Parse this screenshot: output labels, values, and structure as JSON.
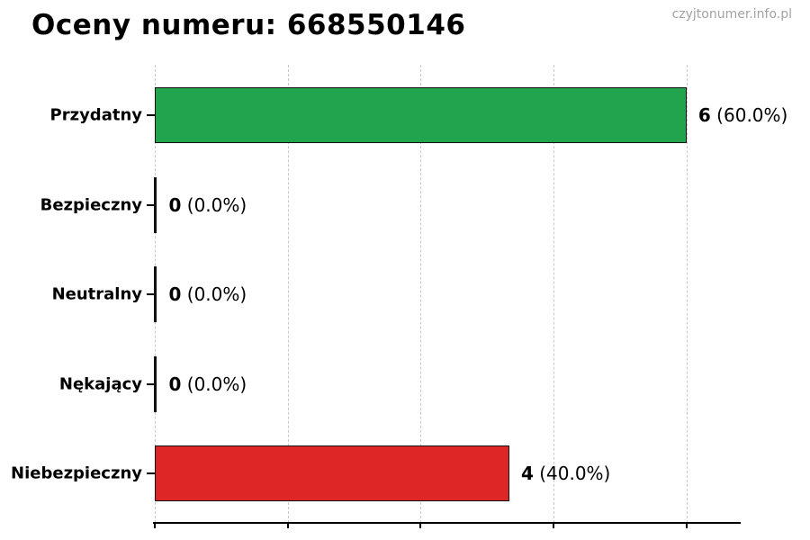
{
  "page": {
    "watermark": "czyjtonumer.info.pl"
  },
  "chart_data": {
    "type": "bar",
    "orientation": "horizontal",
    "title": "Oceny numeru: 668550146",
    "categories": [
      "Przydatny",
      "Bezpieczny",
      "Neutralny",
      "Nękający",
      "Niebezpieczny"
    ],
    "values": [
      6,
      0,
      0,
      0,
      4
    ],
    "percentages": [
      60.0,
      0.0,
      0.0,
      0.0,
      40.0
    ],
    "bar_labels": [
      "6 (60.0%)",
      "0 (0.0%)",
      "0 (0.0%)",
      "0 (0.0%)",
      "4 (40.0%)"
    ],
    "bar_colors": [
      "#22a44e",
      null,
      null,
      null,
      "#de2626"
    ],
    "axis": {
      "x_max_pct": 66,
      "gridlines_pct": [
        0,
        15,
        30,
        45,
        60
      ],
      "tick_labels_visible": false,
      "grid_style": "dashed-vertical"
    },
    "legend_position": "none",
    "ylabel": "",
    "xlabel": ""
  }
}
